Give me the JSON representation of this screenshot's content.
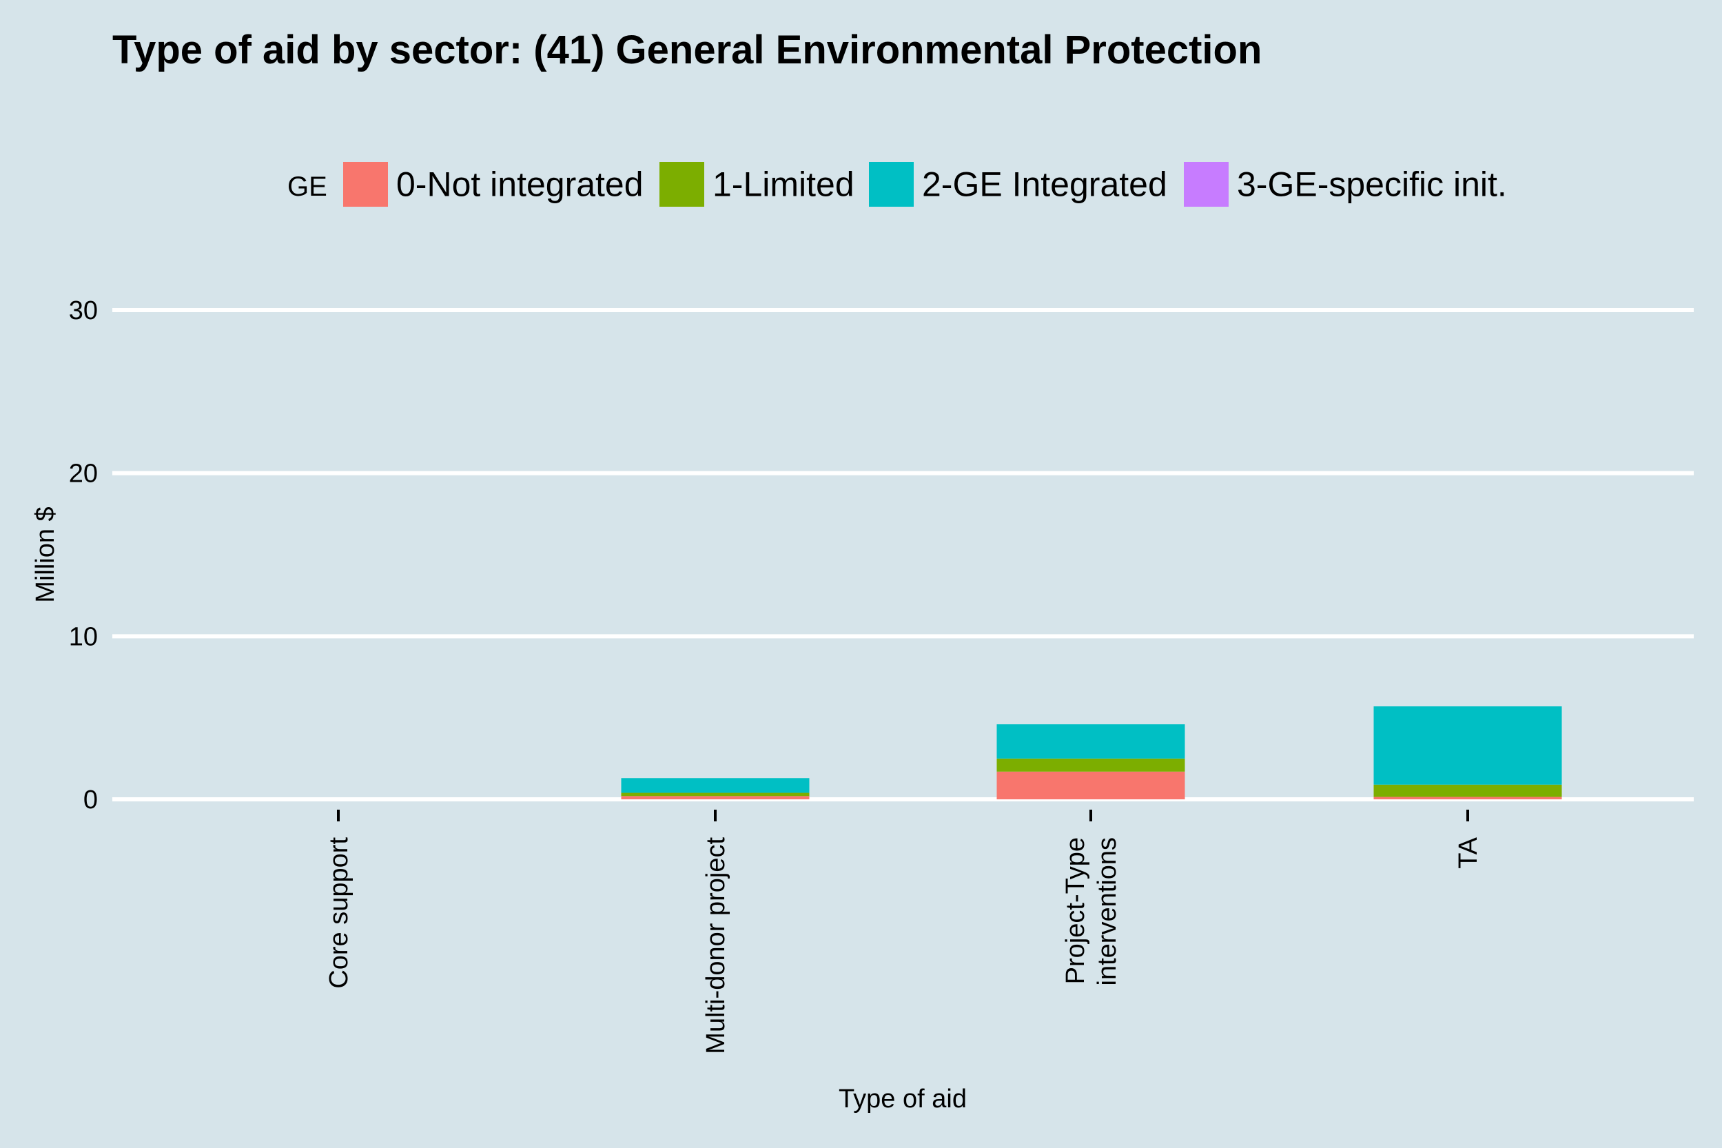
{
  "chart_data": {
    "type": "bar",
    "stacked": true,
    "title": "Type of aid by sector:  (41) General Environmental Protection",
    "xlabel": "Type of aid",
    "ylabel": "Million $",
    "ylim": [
      0,
      33
    ],
    "yticks": [
      0,
      10,
      20,
      30
    ],
    "grid": true,
    "legend_position": "top",
    "legend_title": "GE",
    "categories": [
      "Core support",
      "Multi-donor project",
      "Project-Type interventions",
      "TA"
    ],
    "category_lines": [
      [
        "Core support"
      ],
      [
        "Multi-donor project"
      ],
      [
        "Project-Type",
        "interventions"
      ],
      [
        "TA"
      ]
    ],
    "series": [
      {
        "name": "0-Not integrated",
        "color": "#F8766D",
        "values": [
          0,
          0.2,
          1.7,
          0.15
        ]
      },
      {
        "name": "1-Limited",
        "color": "#7CAE00",
        "values": [
          0,
          0.2,
          0.8,
          0.75
        ]
      },
      {
        "name": "2-GE Integrated",
        "color": "#00BFC4",
        "values": [
          0,
          0.9,
          2.1,
          4.8
        ]
      },
      {
        "name": "3-GE-specific init.",
        "color": "#C77CFF",
        "values": [
          0,
          0,
          0,
          0
        ]
      }
    ]
  }
}
